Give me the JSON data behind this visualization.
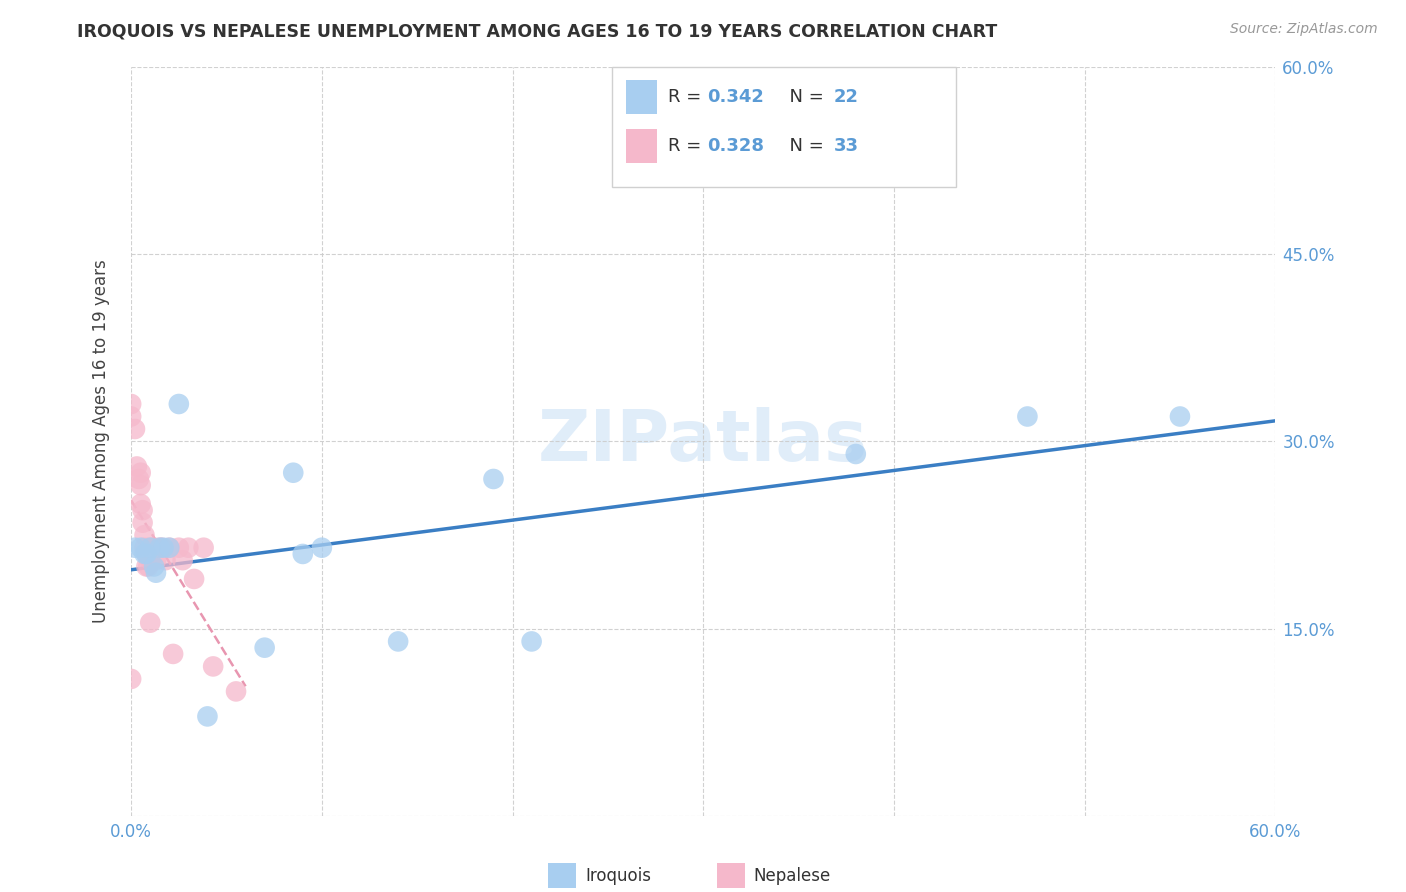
{
  "title": "IROQUOIS VS NEPALESE UNEMPLOYMENT AMONG AGES 16 TO 19 YEARS CORRELATION CHART",
  "source": "Source: ZipAtlas.com",
  "ylabel": "Unemployment Among Ages 16 to 19 years",
  "xlim": [
    0.0,
    0.6
  ],
  "ylim": [
    0.0,
    0.6
  ],
  "xticks": [
    0.0,
    0.1,
    0.2,
    0.3,
    0.4,
    0.5,
    0.6
  ],
  "yticks": [
    0.0,
    0.15,
    0.3,
    0.45,
    0.6
  ],
  "xtick_labels": [
    "0.0%",
    "",
    "",
    "",
    "",
    "",
    "60.0%"
  ],
  "ytick_labels": [
    "",
    "15.0%",
    "30.0%",
    "45.0%",
    "60.0%"
  ],
  "background_color": "#ffffff",
  "grid_color": "#cccccc",
  "watermark": "ZIPatlas",
  "iroquois_color": "#a8cef0",
  "nepalese_color": "#f5b8cb",
  "iroquois_R": "0.342",
  "iroquois_N": "22",
  "nepalese_R": "0.328",
  "nepalese_N": "33",
  "trend_iroquois_color": "#3a7ec4",
  "trend_nepalese_color": "#e896b0",
  "iroquois_x": [
    0.002,
    0.005,
    0.007,
    0.008,
    0.01,
    0.012,
    0.013,
    0.015,
    0.017,
    0.02,
    0.025,
    0.04,
    0.07,
    0.085,
    0.09,
    0.1,
    0.14,
    0.19,
    0.21,
    0.38,
    0.47,
    0.55
  ],
  "iroquois_y": [
    0.215,
    0.215,
    0.21,
    0.21,
    0.215,
    0.2,
    0.195,
    0.215,
    0.215,
    0.215,
    0.33,
    0.08,
    0.135,
    0.275,
    0.21,
    0.215,
    0.14,
    0.27,
    0.14,
    0.29,
    0.32,
    0.32
  ],
  "nepalese_x": [
    0.0,
    0.0,
    0.0,
    0.002,
    0.003,
    0.004,
    0.005,
    0.005,
    0.005,
    0.006,
    0.006,
    0.007,
    0.007,
    0.008,
    0.008,
    0.009,
    0.01,
    0.01,
    0.01,
    0.012,
    0.013,
    0.015,
    0.016,
    0.018,
    0.02,
    0.022,
    0.025,
    0.027,
    0.03,
    0.033,
    0.038,
    0.043,
    0.055
  ],
  "nepalese_y": [
    0.33,
    0.32,
    0.11,
    0.31,
    0.28,
    0.27,
    0.275,
    0.265,
    0.25,
    0.245,
    0.235,
    0.225,
    0.215,
    0.21,
    0.2,
    0.2,
    0.215,
    0.205,
    0.155,
    0.215,
    0.205,
    0.215,
    0.215,
    0.205,
    0.215,
    0.13,
    0.215,
    0.205,
    0.215,
    0.19,
    0.215,
    0.12,
    0.1
  ]
}
